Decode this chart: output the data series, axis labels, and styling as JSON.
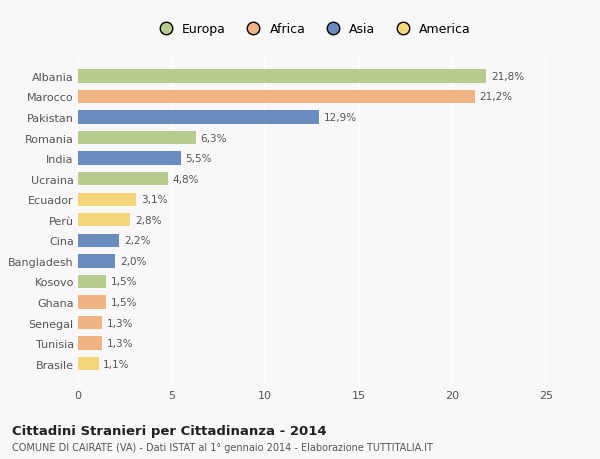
{
  "categories": [
    "Albania",
    "Marocco",
    "Pakistan",
    "Romania",
    "India",
    "Ucraina",
    "Ecuador",
    "Perù",
    "Cina",
    "Bangladesh",
    "Kosovo",
    "Ghana",
    "Senegal",
    "Tunisia",
    "Brasile"
  ],
  "values": [
    21.8,
    21.2,
    12.9,
    6.3,
    5.5,
    4.8,
    3.1,
    2.8,
    2.2,
    2.0,
    1.5,
    1.5,
    1.3,
    1.3,
    1.1
  ],
  "labels": [
    "21,8%",
    "21,2%",
    "12,9%",
    "6,3%",
    "5,5%",
    "4,8%",
    "3,1%",
    "2,8%",
    "2,2%",
    "2,0%",
    "1,5%",
    "1,5%",
    "1,3%",
    "1,3%",
    "1,1%"
  ],
  "colors": [
    "#b5cc8e",
    "#f0b482",
    "#6b8cbf",
    "#b5cc8e",
    "#6b8cbf",
    "#b5cc8e",
    "#f5d47a",
    "#f5d47a",
    "#6b8cbf",
    "#6b8cbf",
    "#b5cc8e",
    "#f0b482",
    "#f0b482",
    "#f0b482",
    "#f5d47a"
  ],
  "legend_labels": [
    "Europa",
    "Africa",
    "Asia",
    "America"
  ],
  "legend_colors": [
    "#b5cc8e",
    "#f0b482",
    "#6b8cbf",
    "#f5d47a"
  ],
  "xlim": [
    0,
    25
  ],
  "xticks": [
    0,
    5,
    10,
    15,
    20,
    25
  ],
  "title": "Cittadini Stranieri per Cittadinanza - 2014",
  "subtitle": "COMUNE DI CAIRATE (VA) - Dati ISTAT al 1° gennaio 2014 - Elaborazione TUTTITALIA.IT",
  "bg_color": "#f8f8f8",
  "grid_color": "#ffffff",
  "bar_height": 0.65
}
